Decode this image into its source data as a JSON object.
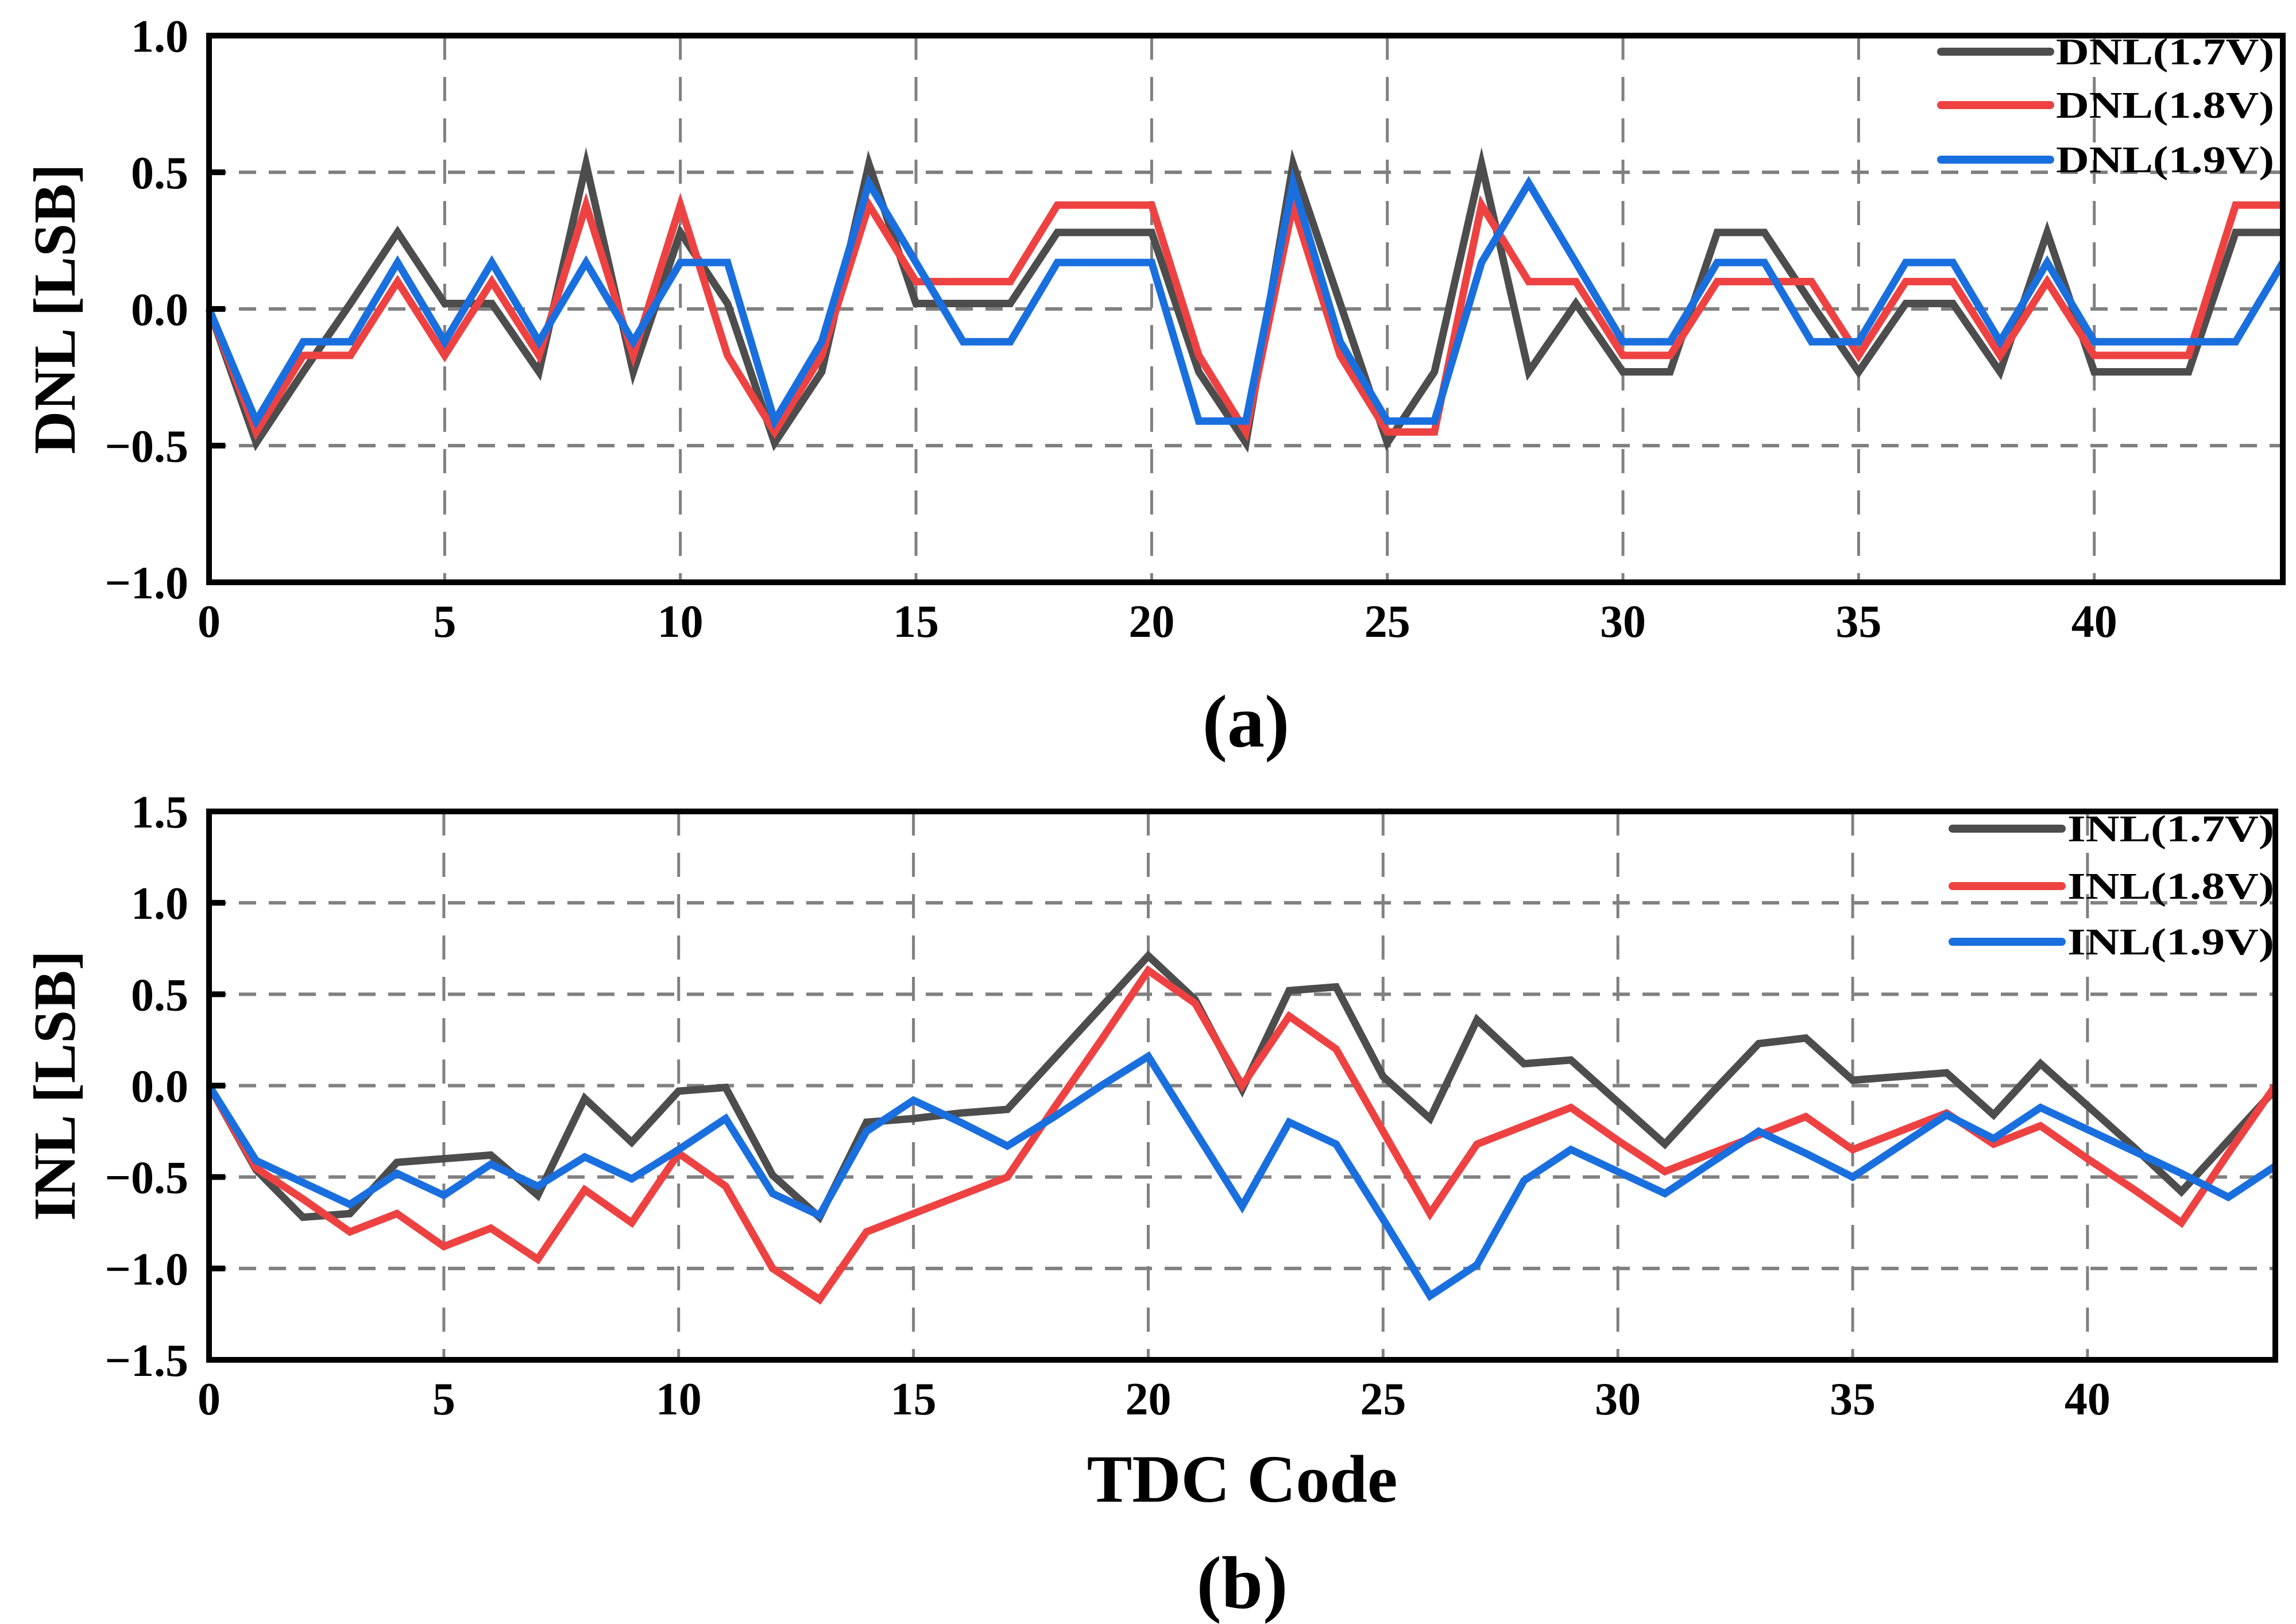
{
  "colors": {
    "v17": "#4d4d4d",
    "v18": "#ee4242",
    "v19": "#1a6fdf",
    "grid": "#808080"
  },
  "chart_data": [
    {
      "type": "line",
      "panel_label": "(a)",
      "xlabel": "",
      "ylabel": "DNL [LSB]",
      "xlim": [
        0,
        44
      ],
      "ylim": [
        -1.0,
        1.0
      ],
      "xticks": [
        "0",
        "5",
        "10",
        "15",
        "20",
        "25",
        "30",
        "35",
        "40"
      ],
      "xtick_values": [
        0,
        5,
        10,
        15,
        20,
        25,
        30,
        35,
        40
      ],
      "yticks": [
        "1.0",
        "0.5",
        "0.0",
        "−0.5",
        "−1.0"
      ],
      "ytick_values": [
        1.0,
        0.5,
        0.0,
        -0.5,
        -1.0
      ],
      "grid": true,
      "legend_position": "top-right",
      "x": [
        0,
        1,
        2,
        3,
        4,
        5,
        6,
        7,
        8,
        9,
        10,
        11,
        12,
        13,
        14,
        15,
        16,
        17,
        18,
        19,
        20,
        21,
        22,
        23,
        24,
        25,
        26,
        27,
        28,
        29,
        30,
        31,
        32,
        33,
        34,
        35,
        36,
        37,
        38,
        39,
        40,
        41,
        42,
        43,
        44
      ],
      "series": [
        {
          "name": "DNL(1.7V)",
          "color_key": "v17",
          "values": [
            0,
            -0.49,
            -0.23,
            0.02,
            0.28,
            0.02,
            0.02,
            -0.23,
            0.53,
            -0.23,
            0.28,
            0.02,
            -0.49,
            -0.23,
            0.53,
            0.02,
            0.02,
            0.02,
            0.28,
            0.28,
            0.28,
            -0.23,
            -0.49,
            0.53,
            0.02,
            -0.49,
            -0.23,
            0.53,
            -0.23,
            0.02,
            -0.23,
            -0.23,
            0.28,
            0.28,
            0.02,
            -0.23,
            0.02,
            0.02,
            -0.23,
            0.28,
            -0.23,
            -0.23,
            -0.23,
            0.28,
            0.28
          ]
        },
        {
          "name": "DNL(1.8V)",
          "color_key": "v18",
          "values": [
            0,
            -0.45,
            -0.17,
            -0.17,
            0.1,
            -0.17,
            0.1,
            -0.17,
            0.38,
            -0.17,
            0.38,
            -0.17,
            -0.45,
            -0.17,
            0.38,
            0.1,
            0.1,
            0.1,
            0.38,
            0.38,
            0.38,
            -0.17,
            -0.45,
            0.38,
            -0.17,
            -0.45,
            -0.45,
            0.38,
            0.1,
            0.1,
            -0.17,
            -0.17,
            0.1,
            0.1,
            0.1,
            -0.17,
            0.1,
            0.1,
            -0.17,
            0.1,
            -0.17,
            -0.17,
            -0.17,
            0.38,
            0.38
          ]
        },
        {
          "name": "DNL(1.9V)",
          "color_key": "v19",
          "values": [
            0,
            -0.41,
            -0.12,
            -0.12,
            0.17,
            -0.12,
            0.17,
            -0.12,
            0.17,
            -0.12,
            0.17,
            0.17,
            -0.41,
            -0.12,
            0.46,
            0.17,
            -0.12,
            -0.12,
            0.17,
            0.17,
            0.17,
            -0.41,
            -0.41,
            0.46,
            -0.12,
            -0.41,
            -0.41,
            0.17,
            0.46,
            0.17,
            -0.12,
            -0.12,
            0.17,
            0.17,
            -0.12,
            -0.12,
            0.17,
            0.17,
            -0.12,
            0.17,
            -0.12,
            -0.12,
            -0.12,
            -0.12,
            0.17
          ]
        }
      ]
    },
    {
      "type": "line",
      "panel_label": "(b)",
      "xlabel": "TDC Code",
      "ylabel": "INL [LSB]",
      "xlim": [
        0,
        44
      ],
      "ylim": [
        -1.5,
        1.5
      ],
      "xticks": [
        "0",
        "5",
        "10",
        "15",
        "20",
        "25",
        "30",
        "35",
        "40"
      ],
      "xtick_values": [
        0,
        5,
        10,
        15,
        20,
        25,
        30,
        35,
        40
      ],
      "yticks": [
        "1.5",
        "1.0",
        "0.5",
        "0.0",
        "−0.5",
        "−1.0",
        "−1.5"
      ],
      "ytick_values": [
        1.5,
        1.0,
        0.5,
        0.0,
        -0.5,
        -1.0,
        -1.5
      ],
      "grid": true,
      "legend_position": "top-right",
      "x": [
        0,
        1,
        2,
        3,
        4,
        5,
        6,
        7,
        8,
        9,
        10,
        11,
        12,
        13,
        14,
        15,
        16,
        17,
        18,
        19,
        20,
        21,
        22,
        23,
        24,
        25,
        26,
        27,
        28,
        29,
        30,
        31,
        32,
        33,
        34,
        35,
        36,
        37,
        38,
        39,
        40,
        41,
        42,
        43,
        44
      ],
      "series": [
        {
          "name": "INL(1.7V)",
          "color_key": "v17",
          "values": [
            0,
            -0.46,
            -0.72,
            -0.7,
            -0.42,
            -0.4,
            -0.38,
            -0.6,
            -0.07,
            -0.31,
            -0.03,
            -0.01,
            -0.49,
            -0.72,
            -0.2,
            -0.18,
            -0.15,
            -0.13,
            0.15,
            0.43,
            0.71,
            0.47,
            -0.02,
            0.52,
            0.54,
            0.05,
            -0.18,
            0.36,
            0.12,
            0.14,
            -0.09,
            -0.32,
            -0.04,
            0.23,
            0.26,
            0.03,
            0.05,
            0.07,
            -0.16,
            0.12,
            -0.11,
            -0.34,
            -0.58,
            -0.3,
            -0.02
          ]
        },
        {
          "name": "INL(1.8V)",
          "color_key": "v18",
          "values": [
            0,
            -0.45,
            -0.62,
            -0.8,
            -0.7,
            -0.88,
            -0.78,
            -0.95,
            -0.57,
            -0.75,
            -0.37,
            -0.55,
            -1.0,
            -1.17,
            -0.8,
            -0.7,
            -0.6,
            -0.5,
            -0.12,
            0.25,
            0.63,
            0.45,
            0,
            0.38,
            0.2,
            -0.25,
            -0.7,
            -0.32,
            -0.22,
            -0.12,
            -0.3,
            -0.47,
            -0.37,
            -0.27,
            -0.17,
            -0.35,
            -0.25,
            -0.15,
            -0.32,
            -0.22,
            -0.4,
            -0.57,
            -0.75,
            -0.37,
            0
          ]
        },
        {
          "name": "INL(1.9V)",
          "color_key": "v19",
          "values": [
            0,
            -0.41,
            -0.53,
            -0.65,
            -0.48,
            -0.6,
            -0.43,
            -0.55,
            -0.39,
            -0.51,
            -0.35,
            -0.18,
            -0.59,
            -0.71,
            -0.25,
            -0.08,
            -0.2,
            -0.33,
            -0.17,
            0,
            0.16,
            -0.25,
            -0.66,
            -0.2,
            -0.32,
            -0.73,
            -1.15,
            -0.98,
            -0.52,
            -0.35,
            -0.47,
            -0.59,
            -0.42,
            -0.25,
            -0.37,
            -0.5,
            -0.33,
            -0.16,
            -0.29,
            -0.12,
            -0.24,
            -0.36,
            -0.48,
            -0.61,
            -0.44
          ]
        }
      ]
    }
  ]
}
